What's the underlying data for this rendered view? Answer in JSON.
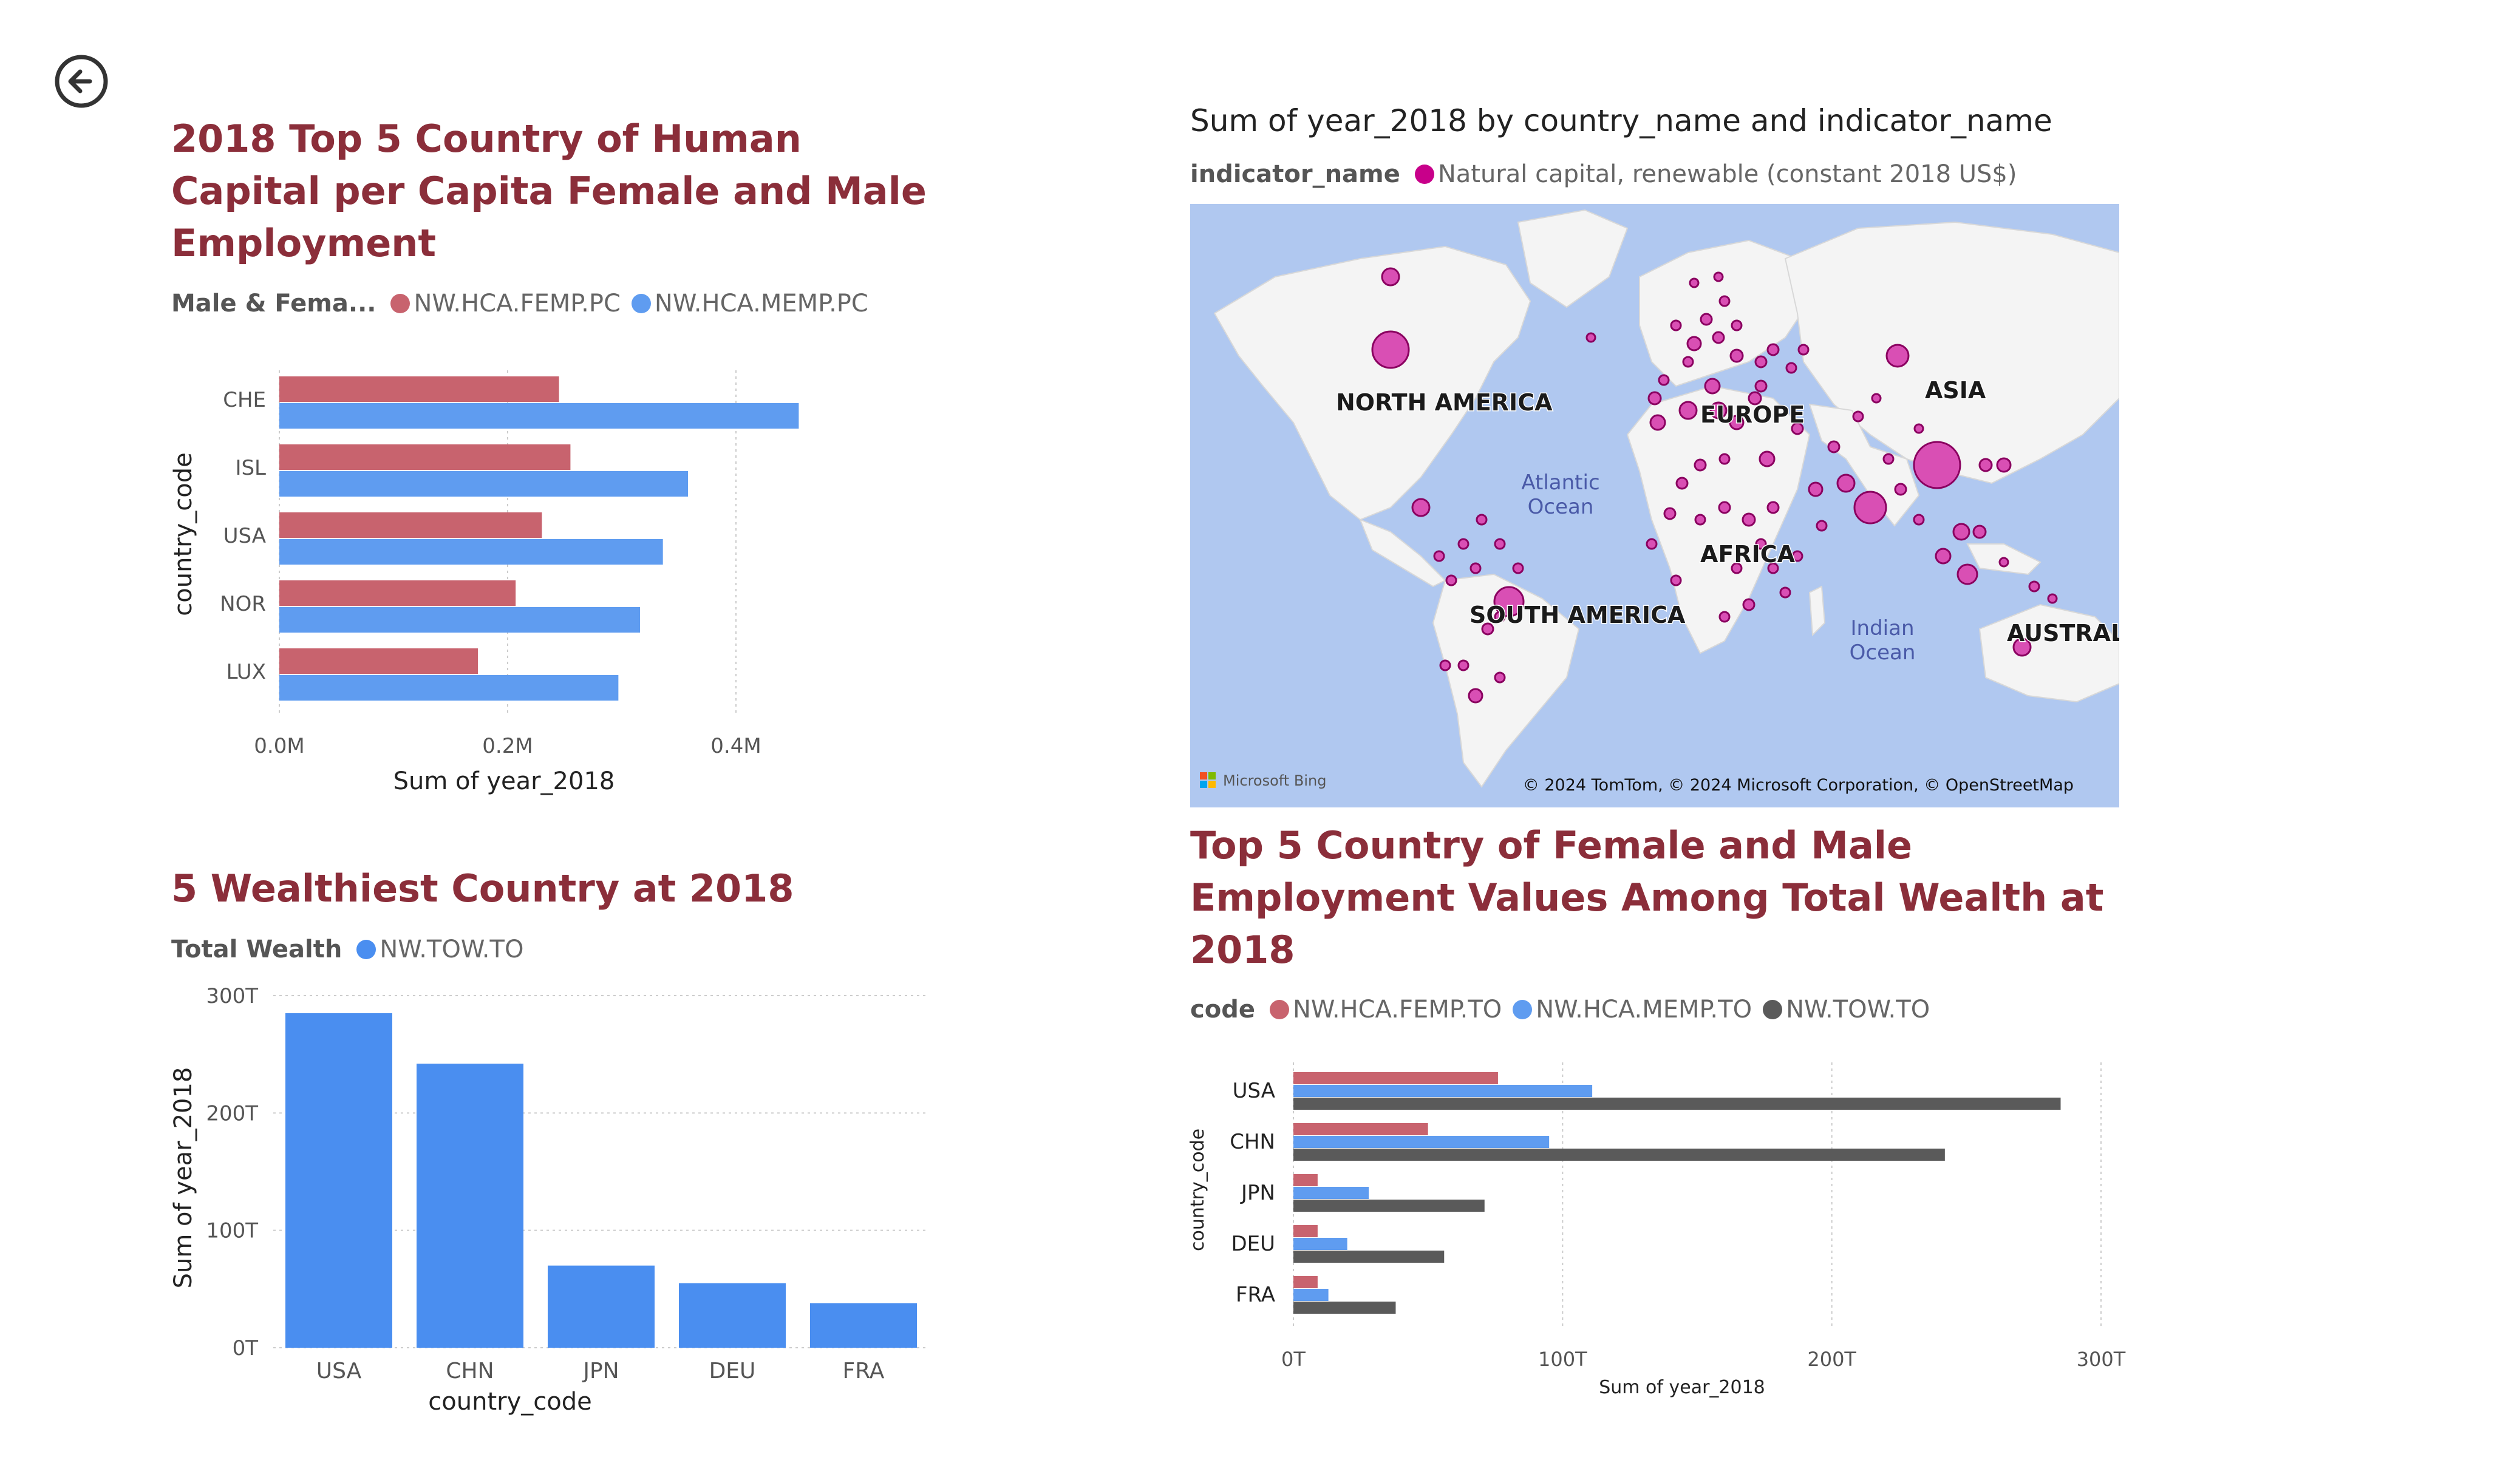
{
  "colors": {
    "female": "#c8636e",
    "male": "#5f9cf0",
    "wealth": "#4a8ef0",
    "total": "#5a5a5a",
    "title": "#8b2e3a",
    "map_bg": "#b0c8f0",
    "land": "#f4f4f4",
    "bubble": "#d94fb4"
  },
  "nav": {
    "back_icon": "back-arrow-icon"
  },
  "chart1": {
    "title": "2018 Top 5 Country of Human Capital per Capita Female and Male Employment",
    "legend_title": "Male & Fema...",
    "legend": [
      "NW.HCA.FEMP.PC",
      "NW.HCA.MEMP.PC"
    ],
    "chart_data": {
      "type": "bar",
      "orientation": "horizontal",
      "categories": [
        "CHE",
        "ISL",
        "USA",
        "NOR",
        "LUX"
      ],
      "series": [
        {
          "name": "NW.HCA.FEMP.PC",
          "values": [
            0.245,
            0.255,
            0.23,
            0.207,
            0.174
          ]
        },
        {
          "name": "NW.HCA.MEMP.PC",
          "values": [
            0.455,
            0.358,
            0.336,
            0.316,
            0.297
          ]
        }
      ],
      "xlabel": "Sum of year_2018",
      "ylabel": "country_code",
      "xlim": [
        0,
        0.5
      ],
      "ticks": [
        "0.0M",
        "0.2M",
        "0.4M"
      ],
      "tick_values": [
        0,
        0.2,
        0.4
      ]
    }
  },
  "chart2": {
    "title": "5 Wealthiest Country at 2018",
    "legend_title": "Total Wealth",
    "legend": [
      "NW.TOW.TO"
    ],
    "chart_data": {
      "type": "bar",
      "orientation": "vertical",
      "categories": [
        "USA",
        "CHN",
        "JPN",
        "DEU",
        "FRA"
      ],
      "series": [
        {
          "name": "NW.TOW.TO",
          "values": [
            285,
            242,
            70,
            55,
            38
          ]
        }
      ],
      "xlabel": "country_code",
      "ylabel": "Sum of year_2018",
      "ylim": [
        0,
        300
      ],
      "ticks": [
        "0T",
        "100T",
        "200T",
        "300T"
      ],
      "tick_values": [
        0,
        100,
        200,
        300
      ]
    }
  },
  "map": {
    "title": "Sum of year_2018 by country_name and indicator_name",
    "legend_title": "indicator_name",
    "legend": [
      "Natural capital, renewable (constant 2018 US$)"
    ],
    "labels": [
      "NORTH AMERICA",
      "EUROPE",
      "ASIA",
      "AFRICA",
      "SOUTH AMERICA",
      "AUSTRALIA"
    ],
    "ocean_labels": [
      "Atlantic",
      "Ocean",
      "Indian",
      "Ocean"
    ],
    "brand": "Microsoft Bing",
    "credits": "© 2024 TomTom, © 2024 Microsoft Corporation, © OpenStreetMap"
  },
  "chart3": {
    "title": "Top 5 Country of Female and Male Employment Values Among Total Wealth at 2018",
    "legend_title": "code",
    "legend": [
      "NW.HCA.FEMP.TO",
      "NW.HCA.MEMP.TO",
      "NW.TOW.TO"
    ],
    "chart_data": {
      "type": "bar",
      "orientation": "horizontal",
      "categories": [
        "USA",
        "CHN",
        "JPN",
        "DEU",
        "FRA"
      ],
      "series": [
        {
          "name": "NW.HCA.FEMP.TO",
          "values": [
            76,
            50,
            9,
            9,
            9
          ]
        },
        {
          "name": "NW.HCA.MEMP.TO",
          "values": [
            111,
            95,
            28,
            20,
            13
          ]
        },
        {
          "name": "NW.TOW.TO",
          "values": [
            285,
            242,
            71,
            56,
            38
          ]
        }
      ],
      "xlabel": "Sum of year_2018",
      "ylabel": "country_code",
      "xlim": [
        0,
        300
      ],
      "ticks": [
        "0T",
        "100T",
        "200T",
        "300T"
      ],
      "tick_values": [
        0,
        100,
        200,
        300
      ]
    }
  }
}
